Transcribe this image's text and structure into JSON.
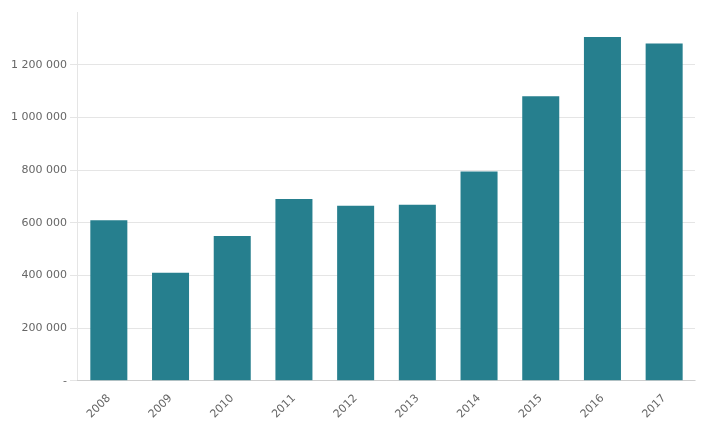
{
  "chart_data": {
    "type": "bar",
    "categories": [
      "2008",
      "2009",
      "2010",
      "2011",
      "2012",
      "2013",
      "2014",
      "2015",
      "2016",
      "2017"
    ],
    "values": [
      610000,
      410000,
      550000,
      690000,
      665000,
      668000,
      795000,
      1080000,
      1305000,
      1280000
    ],
    "color": "#267f8e",
    "ylim": [
      0,
      1400000
    ],
    "yticks": [
      {
        "value": 0,
        "label": "-"
      },
      {
        "value": 200000,
        "label": "200 000"
      },
      {
        "value": 400000,
        "label": "400 000"
      },
      {
        "value": 600000,
        "label": "600 000"
      },
      {
        "value": 800000,
        "label": "800 000"
      },
      {
        "value": 1000000,
        "label": "1 000 000"
      },
      {
        "value": 1200000,
        "label": "1 200 000"
      }
    ],
    "grid": true
  }
}
